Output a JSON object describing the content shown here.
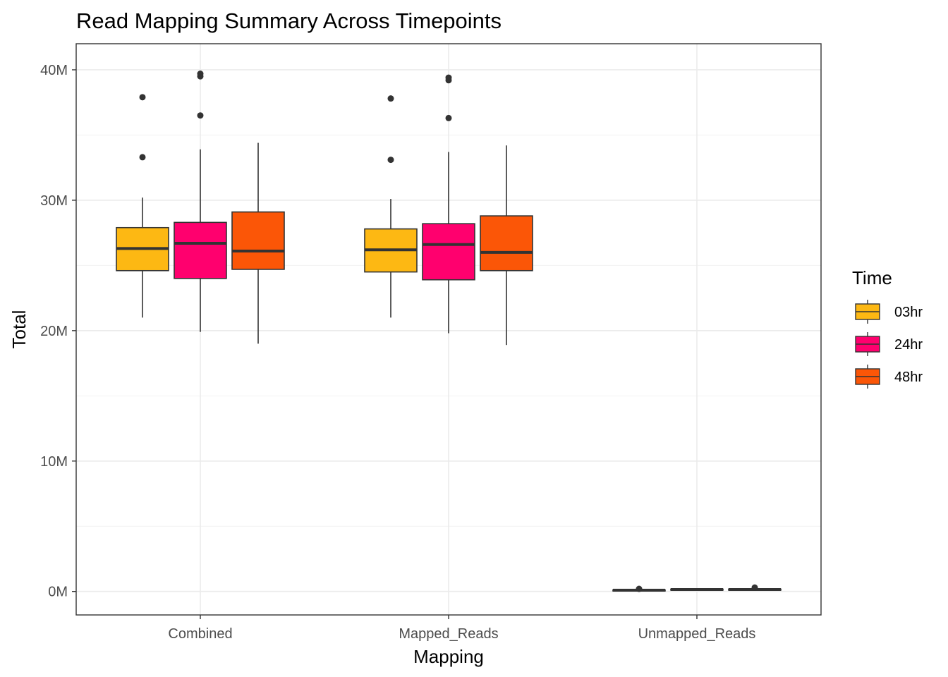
{
  "chart_data": {
    "type": "boxplot",
    "title": "Read Mapping Summary Across Timepoints",
    "xlabel": "Mapping",
    "ylabel": "Total",
    "categories": [
      "Combined",
      "Mapped_Reads",
      "Unmapped_Reads"
    ],
    "ylim": [
      -1.8,
      42
    ],
    "yticks": [
      0,
      10,
      20,
      30,
      40
    ],
    "ytick_labels": [
      "0M",
      "10M",
      "20M",
      "30M",
      "40M"
    ],
    "units": "millions of reads",
    "grid": true,
    "legend": {
      "title": "Time",
      "position": "right"
    },
    "series": [
      {
        "name": "03hr",
        "color": "#FDB813",
        "boxes": [
          {
            "category": "Combined",
            "min": 21.0,
            "q1": 24.6,
            "median": 26.3,
            "q3": 27.9,
            "max": 30.2,
            "outliers": [
              33.3,
              37.9
            ]
          },
          {
            "category": "Mapped_Reads",
            "min": 21.0,
            "q1": 24.5,
            "median": 26.2,
            "q3": 27.8,
            "max": 30.1,
            "outliers": [
              33.1,
              37.8
            ]
          },
          {
            "category": "Unmapped_Reads",
            "min": 0.05,
            "q1": 0.08,
            "median": 0.1,
            "q3": 0.12,
            "max": 0.15,
            "outliers": [
              0.2
            ]
          }
        ]
      },
      {
        "name": "24hr",
        "color": "#FF006E",
        "boxes": [
          {
            "category": "Combined",
            "min": 19.9,
            "q1": 24.0,
            "median": 26.7,
            "q3": 28.3,
            "max": 33.9,
            "outliers": [
              36.5,
              39.5,
              39.7
            ]
          },
          {
            "category": "Mapped_Reads",
            "min": 19.8,
            "q1": 23.9,
            "median": 26.6,
            "q3": 28.2,
            "max": 33.7,
            "outliers": [
              36.3,
              39.2,
              39.4
            ]
          },
          {
            "category": "Unmapped_Reads",
            "min": 0.1,
            "q1": 0.12,
            "median": 0.15,
            "q3": 0.18,
            "max": 0.2,
            "outliers": []
          }
        ]
      },
      {
        "name": "48hr",
        "color": "#FB5607",
        "boxes": [
          {
            "category": "Combined",
            "min": 19.0,
            "q1": 24.7,
            "median": 26.1,
            "q3": 29.1,
            "max": 34.4,
            "outliers": []
          },
          {
            "category": "Mapped_Reads",
            "min": 18.9,
            "q1": 24.6,
            "median": 26.0,
            "q3": 28.8,
            "max": 34.2,
            "outliers": []
          },
          {
            "category": "Unmapped_Reads",
            "min": 0.08,
            "q1": 0.1,
            "median": 0.15,
            "q3": 0.18,
            "max": 0.22,
            "outliers": [
              0.3
            ]
          }
        ]
      }
    ]
  }
}
